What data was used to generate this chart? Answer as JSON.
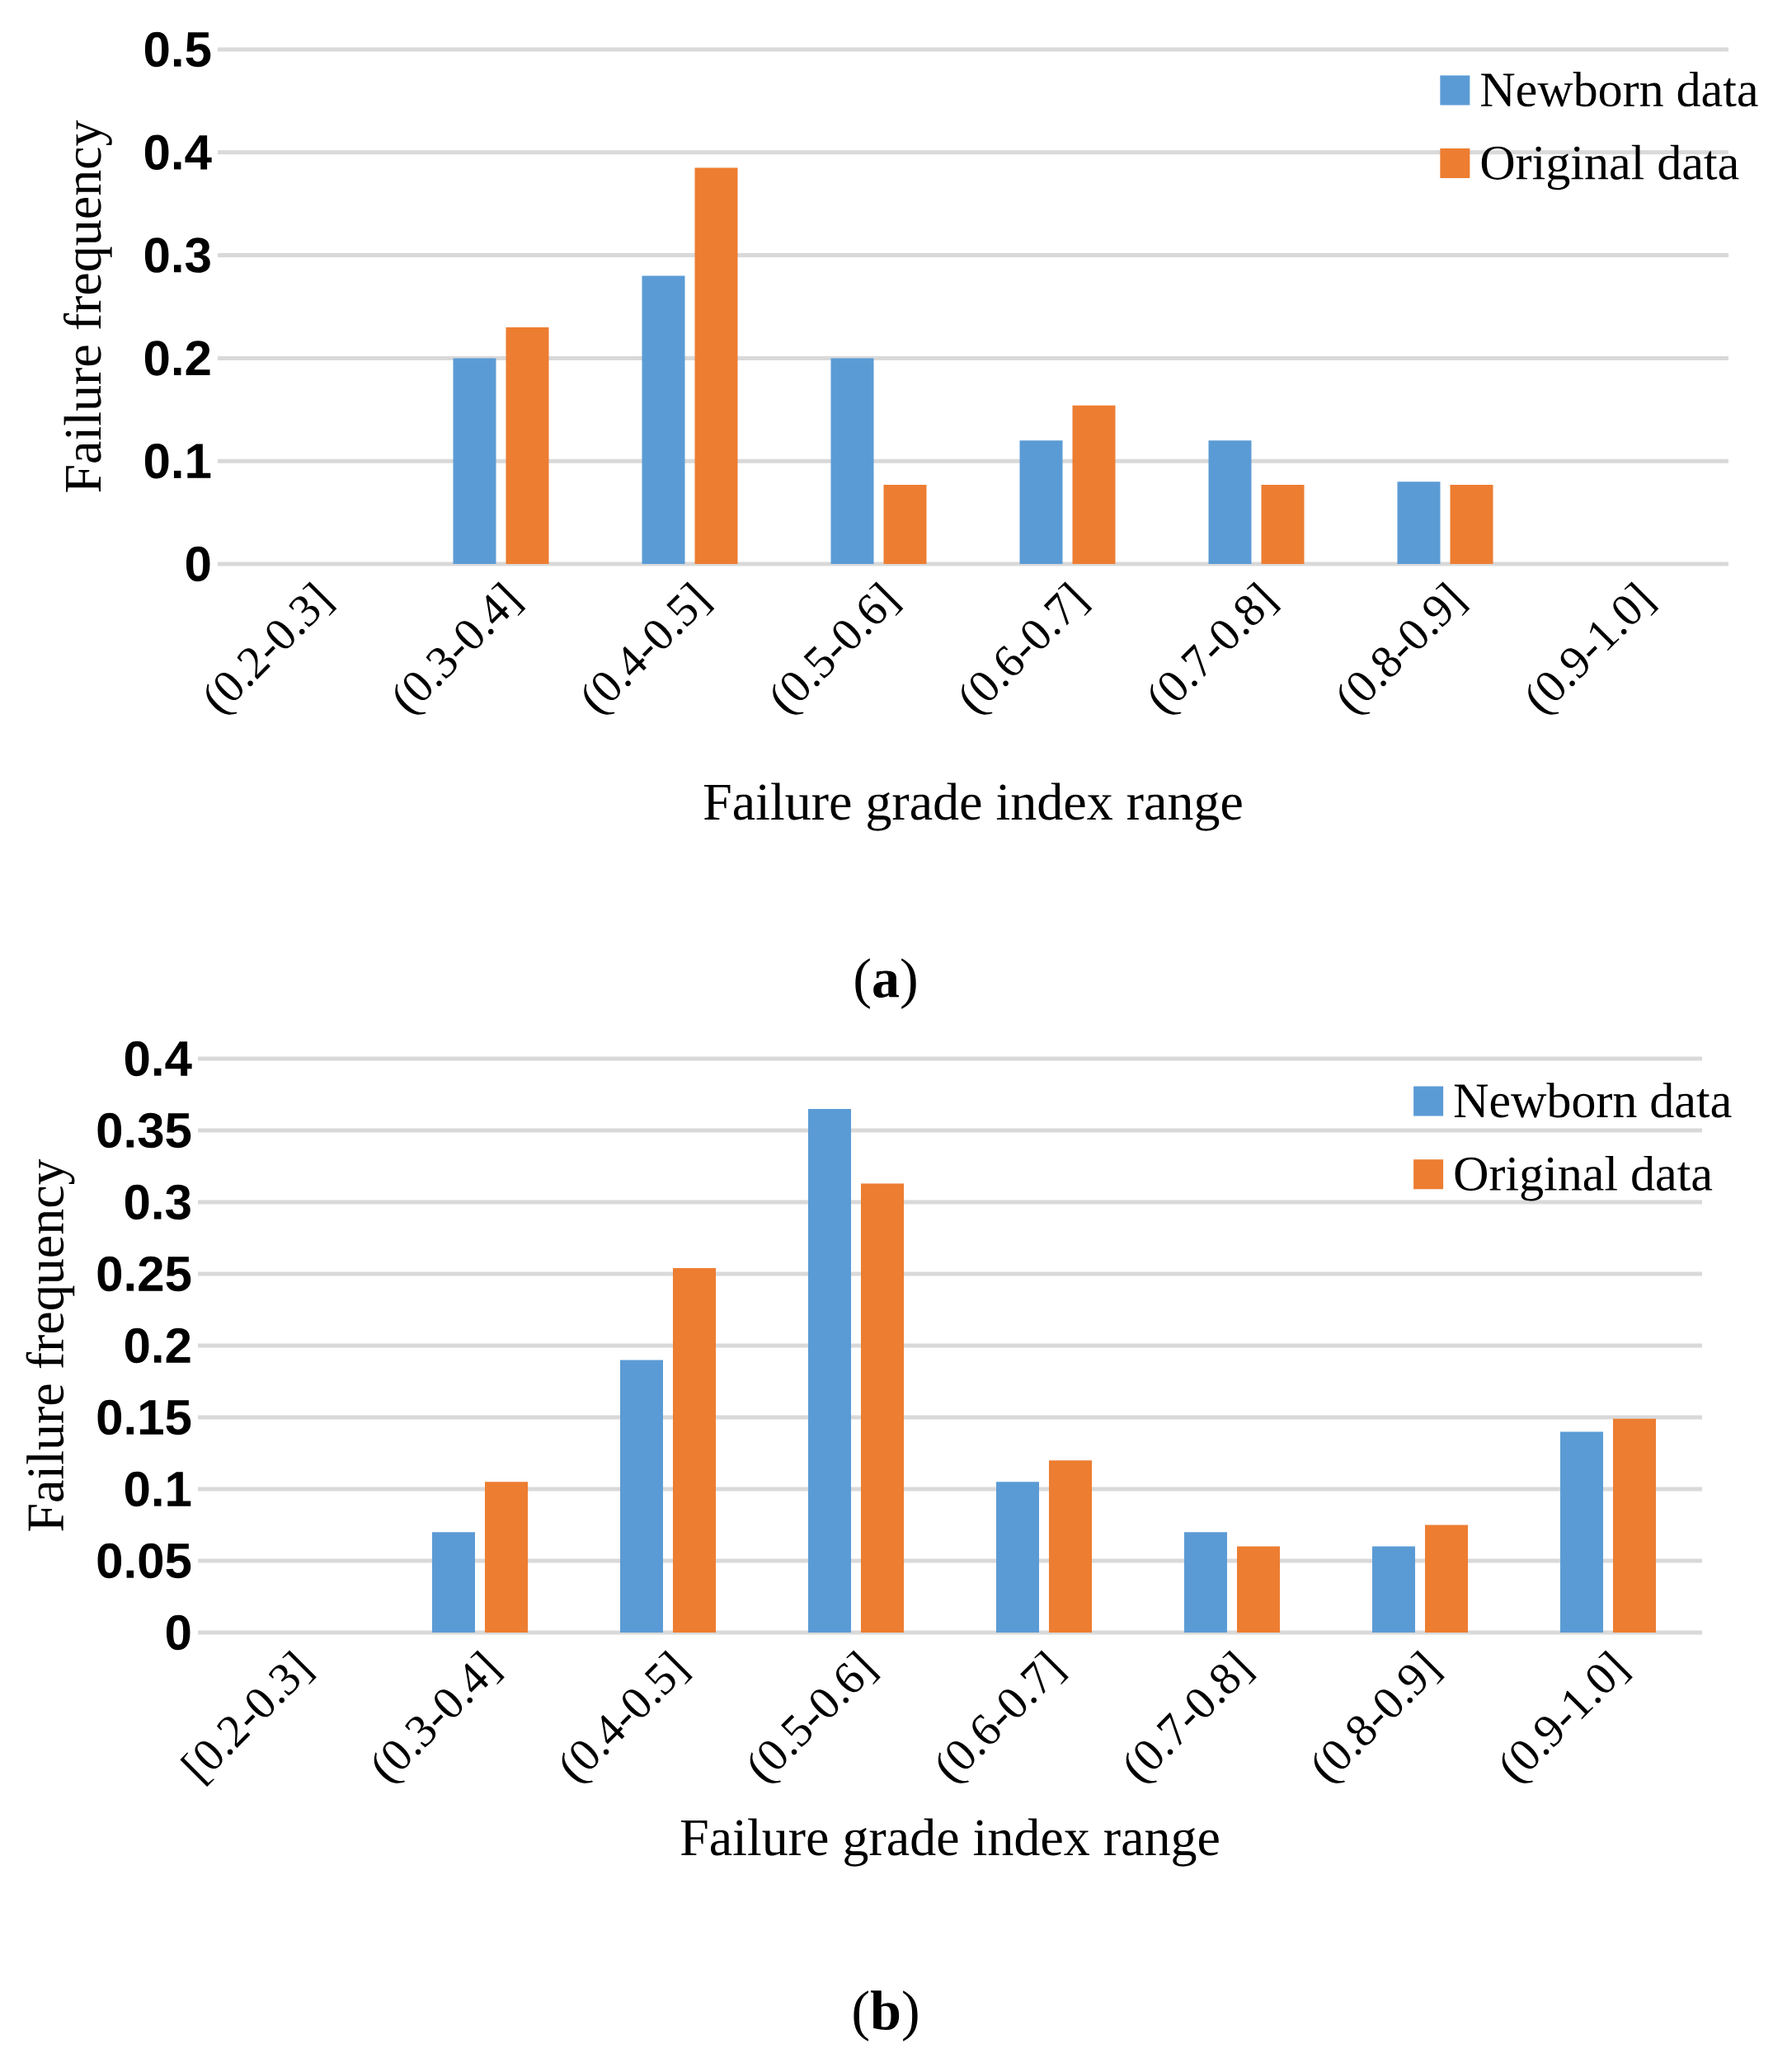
{
  "chart_data": [
    {
      "type": "bar",
      "categories": [
        "(0.2-0.3]",
        "(0.3-0.4]",
        "(0.4-0.5]",
        "(0.5-0.6]",
        "(0.6-0.7]",
        "(0.7-0.8]",
        "(0.8-0.9]",
        "(0.9-1.0]"
      ],
      "series": [
        {
          "name": "Newborn data",
          "color": "#5b9bd5",
          "values": [
            0,
            0.2,
            0.28,
            0.2,
            0.12,
            0.12,
            0.08,
            0
          ]
        },
        {
          "name": "Original data",
          "color": "#ed7d31",
          "values": [
            0,
            0.23,
            0.385,
            0.077,
            0.154,
            0.077,
            0.077,
            0
          ]
        }
      ],
      "ylim": [
        0,
        0.5
      ],
      "yticks": [
        0,
        0.1,
        0.2,
        0.3,
        0.4,
        0.5
      ],
      "xlabel": "Failure grade index range",
      "ylabel": "Failure frequency",
      "grid": "y",
      "legend": "top right",
      "annotations": [
        "(**a**)"
      ]
    },
    {
      "type": "bar",
      "categories": [
        "[0.2-0.3]",
        "(0.3-0.4]",
        "(0.4-0.5]",
        "(0.5-0.6]",
        "(0.6-0.7]",
        "(0.7-0.8]",
        "(0.8-0.9]",
        "(0.9-1.0]"
      ],
      "series": [
        {
          "name": "Newborn data",
          "color": "#5b9bd5",
          "values": [
            0,
            0.07,
            0.19,
            0.365,
            0.105,
            0.07,
            0.06,
            0.14
          ]
        },
        {
          "name": "Original data",
          "color": "#ed7d31",
          "values": [
            0,
            0.105,
            0.254,
            0.313,
            0.12,
            0.06,
            0.075,
            0.149
          ]
        }
      ],
      "ylim": [
        0,
        0.4
      ],
      "yticks": [
        0,
        0.05,
        0.1,
        0.15,
        0.2,
        0.25,
        0.3,
        0.35,
        0.4
      ],
      "xlabel": "Failure grade index range",
      "ylabel": "Failure frequency",
      "grid": "y",
      "legend": "top right",
      "annotations": [
        "(**b**)"
      ]
    }
  ]
}
